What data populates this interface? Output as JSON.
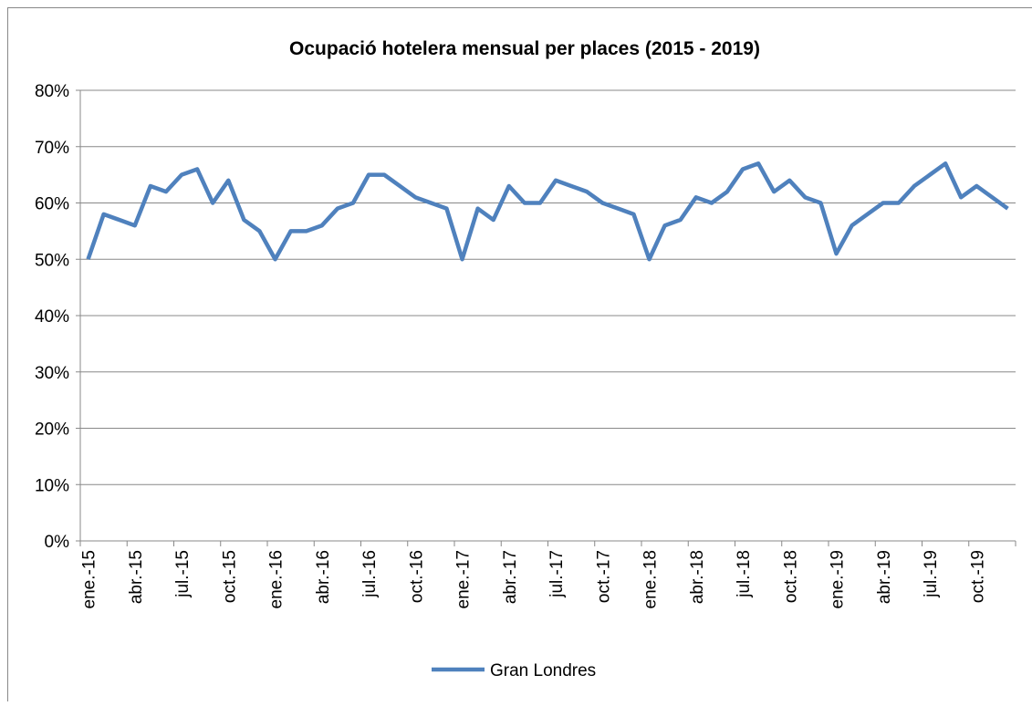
{
  "chart_data": {
    "type": "line",
    "title": "Ocupació hotelera mensual per places (2015 - 2019)",
    "categories": [
      "ene.-15",
      null,
      null,
      "abr.-15",
      null,
      null,
      "jul.-15",
      null,
      null,
      "oct.-15",
      null,
      null,
      "ene.-16",
      null,
      null,
      "abr.-16",
      null,
      null,
      "jul.-16",
      null,
      null,
      "oct.-16",
      null,
      null,
      "ene.-17",
      null,
      null,
      "abr.-17",
      null,
      null,
      "jul.-17",
      null,
      null,
      "oct.-17",
      null,
      null,
      "ene.-18",
      null,
      null,
      "abr.-18",
      null,
      null,
      "jul.-18",
      null,
      null,
      "oct.-18",
      null,
      null,
      "ene.-19",
      null,
      null,
      "abr.-19",
      null,
      null,
      "jul.-19",
      null,
      null,
      "oct.-19",
      null,
      null
    ],
    "series": [
      {
        "name": "Gran Londres",
        "color": "#4f81bd",
        "values": [
          50,
          58,
          57,
          56,
          63,
          62,
          65,
          66,
          60,
          64,
          57,
          55,
          50,
          55,
          55,
          56,
          59,
          60,
          65,
          65,
          63,
          61,
          60,
          59,
          50,
          59,
          57,
          63,
          60,
          60,
          64,
          63,
          62,
          60,
          59,
          58,
          50,
          56,
          57,
          61,
          60,
          62,
          66,
          67,
          62,
          64,
          61,
          60,
          51,
          56,
          58,
          60,
          60,
          63,
          65,
          67,
          61,
          63,
          61,
          59
        ]
      }
    ],
    "ylim": [
      0,
      80
    ],
    "yticks": [
      {
        "value": 0,
        "label": "0%"
      },
      {
        "value": 10,
        "label": "10%"
      },
      {
        "value": 20,
        "label": "20%"
      },
      {
        "value": 30,
        "label": "30%"
      },
      {
        "value": 40,
        "label": "40%"
      },
      {
        "value": 50,
        "label": "50%"
      },
      {
        "value": 60,
        "label": "60%"
      },
      {
        "value": 70,
        "label": "70%"
      },
      {
        "value": 80,
        "label": "80%"
      }
    ],
    "grid": true,
    "legend": "bottom"
  }
}
